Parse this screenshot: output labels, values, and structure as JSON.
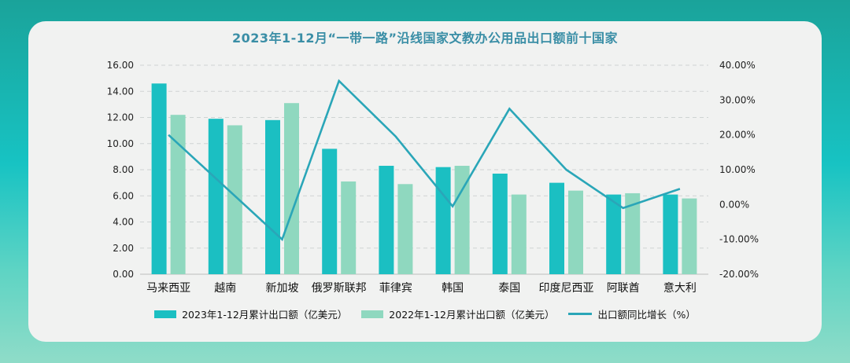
{
  "colors": {
    "bar2023": "#1bbfc2",
    "bar2022": "#8fd8bf",
    "line": "#2aa6b8",
    "grid": "#cfd3d3"
  },
  "chart_data": {
    "type": "bar",
    "title": "2023年1-12月“一带一路”沿线国家文教办公用品出口额前十国家",
    "categories": [
      "马来西亚",
      "越南",
      "新加坡",
      "俄罗斯联邦",
      "菲律宾",
      "韩国",
      "泰国",
      "印度尼西亚",
      "阿联酋",
      "意大利"
    ],
    "series": [
      {
        "name": "2023年1-12月累计出口额（亿美元）",
        "axis": "left",
        "kind": "bar",
        "values": [
          14.6,
          11.9,
          11.8,
          9.6,
          8.3,
          8.2,
          7.7,
          7.0,
          6.1,
          6.1
        ]
      },
      {
        "name": "2022年1-12月累计出口额（亿美元）",
        "axis": "left",
        "kind": "bar",
        "values": [
          12.2,
          11.4,
          13.1,
          7.1,
          6.9,
          8.3,
          6.1,
          6.4,
          6.2,
          5.8
        ]
      },
      {
        "name": "出口额同比增长（%）",
        "axis": "right",
        "kind": "line",
        "values": [
          20.0,
          5.0,
          -10.0,
          35.5,
          19.5,
          -0.5,
          27.5,
          10.0,
          -1.0,
          4.5
        ]
      }
    ],
    "ylim_left": [
      0,
      16
    ],
    "ylim_right": [
      -20,
      40
    ],
    "yticks_left": [
      "0.00",
      "2.00",
      "4.00",
      "6.00",
      "8.00",
      "10.00",
      "12.00",
      "14.00",
      "16.00"
    ],
    "yticks_right": [
      "-20.00%",
      "-10.00%",
      "0.00%",
      "10.00%",
      "20.00%",
      "30.00%",
      "40.00%"
    ],
    "legend": [
      "2023年1-12月累计出口额（亿美元）",
      "2022年1-12月累计出口额（亿美元）",
      "出口额同比增长（%）"
    ],
    "legend_position": "bottom",
    "grid": true
  }
}
